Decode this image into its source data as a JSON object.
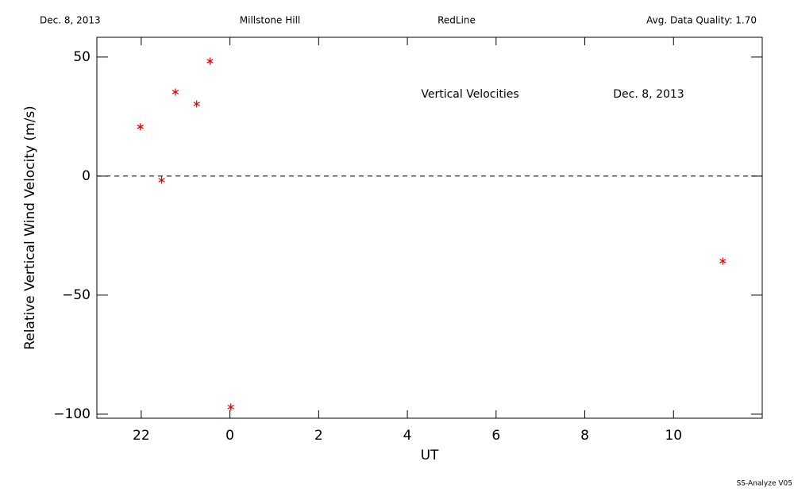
{
  "header": {
    "date": "Dec. 8, 2013",
    "site": "Millstone Hill",
    "instrument": "RedLine",
    "quality": "Avg. Data Quality: 1.70"
  },
  "footer": "SS-Analyze V05",
  "chart_data": {
    "type": "scatter",
    "xlabel": "UT",
    "ylabel": "Relative Vertical Wind Velocity (m/s)",
    "annotations": [
      "Vertical Velocities",
      "Dec. 8, 2013"
    ],
    "x": [
      -2.02,
      -1.54,
      -1.23,
      -0.75,
      -0.45,
      0.02,
      11.11
    ],
    "values": [
      20.7,
      -1.7,
      35.3,
      30.3,
      48.3,
      -97,
      -35.7
    ],
    "color": "#dd0000",
    "xlim": [
      -3,
      12
    ],
    "xticks": [
      {
        "value": -2,
        "label": "22"
      },
      {
        "value": 0,
        "label": "0"
      },
      2,
      4,
      6,
      8,
      10
    ],
    "ylim": [
      -101.7,
      58.3
    ],
    "yticks": [
      {
        "value": -100,
        "label": "−100"
      },
      {
        "value": -50,
        "label": "−50"
      },
      0,
      50
    ],
    "reference_line": 0
  }
}
